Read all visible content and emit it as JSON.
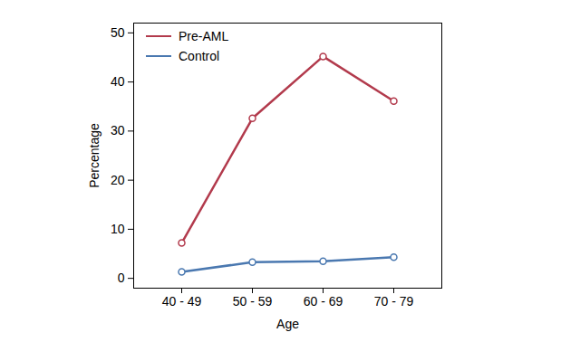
{
  "chart_data": {
    "type": "line",
    "x_label": "Age",
    "y_label": "Percentage",
    "categories": [
      "40 - 49",
      "50 - 59",
      "60 - 69",
      "70 - 79"
    ],
    "series": [
      {
        "name": "Pre-AML",
        "color": "#b23a4c",
        "values": [
          7.2,
          32.6,
          45.2,
          36.1
        ]
      },
      {
        "name": "Control",
        "color": "#4a78b0",
        "values": [
          1.3,
          3.3,
          3.5,
          4.3
        ]
      }
    ],
    "ylim": [
      -2,
      52
    ],
    "yticks": [
      0,
      10,
      20,
      30,
      40,
      50
    ],
    "grid": false,
    "legend": "top-left",
    "marker": "circle"
  }
}
